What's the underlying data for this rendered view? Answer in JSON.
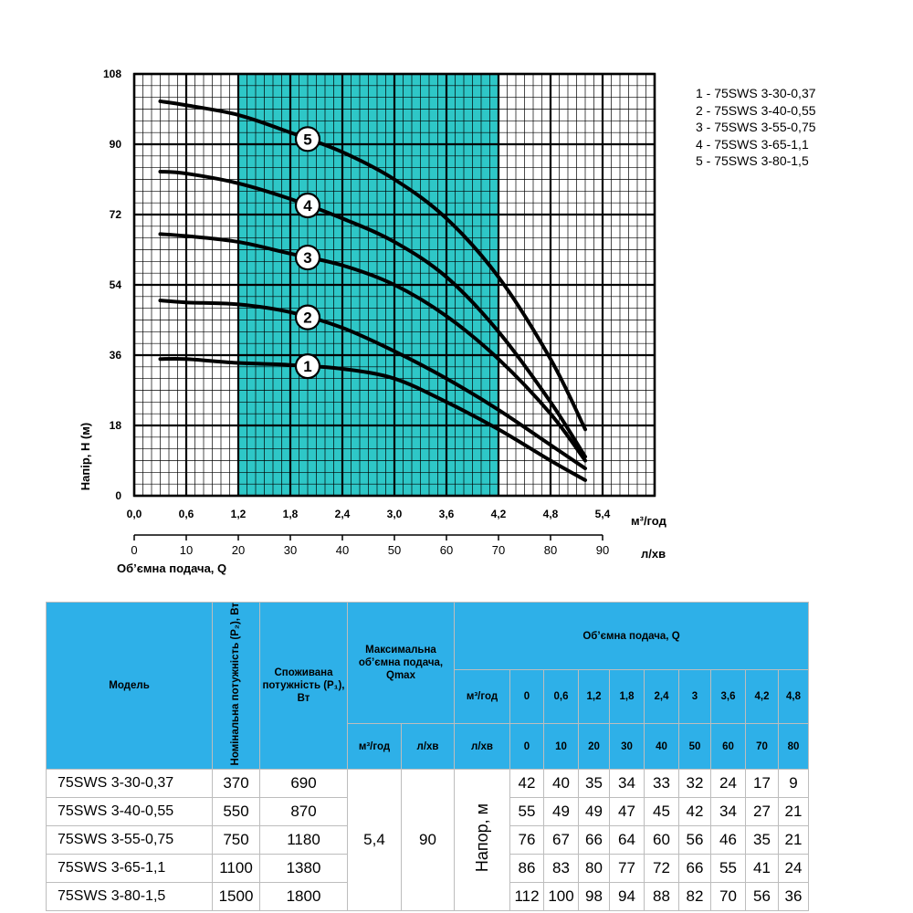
{
  "chart_data": {
    "type": "line",
    "xlabel_primary": "м³/год",
    "xlabel_secondary": "л/хв",
    "xaxis_caption": "Об’ємна подача, Q",
    "ylabel": "Напір, Н (м)",
    "xlim": [
      0,
      6
    ],
    "ylim": [
      0,
      108
    ],
    "x_ticks": [
      "0,0",
      "0,6",
      "1,2",
      "1,8",
      "2,4",
      "3,0",
      "3,6",
      "4,2",
      "4,8",
      "5,4"
    ],
    "x_ticks_secondary": [
      "0",
      "10",
      "20",
      "30",
      "40",
      "50",
      "60",
      "70",
      "80",
      "90"
    ],
    "y_ticks": [
      "0",
      "18",
      "36",
      "54",
      "72",
      "90",
      "108"
    ],
    "grid": true,
    "shaded_range": [
      1.2,
      4.2
    ],
    "shade_color": "#2ec7c7",
    "legend_position": "top-right",
    "legend": [
      "1 - 75SWS 3-30-0,37",
      "2 - 75SWS 3-40-0,55",
      "3 - 75SWS 3-55-0,75",
      "4 - 75SWS 3-65-1,1",
      "5 - 75SWS 3-80-1,5"
    ],
    "series": [
      {
        "name": "1",
        "label_at": 2.0,
        "x": [
          0.3,
          0.6,
          1.2,
          1.8,
          2.4,
          3.0,
          3.6,
          4.2,
          4.8,
          5.2
        ],
        "y": [
          35,
          35,
          34,
          33.5,
          32.5,
          30,
          24,
          17,
          9,
          4
        ]
      },
      {
        "name": "2",
        "label_at": 2.0,
        "x": [
          0.3,
          0.6,
          1.2,
          1.8,
          2.4,
          3.0,
          3.6,
          4.2,
          4.8,
          5.2
        ],
        "y": [
          50,
          49.5,
          49,
          47,
          43,
          37,
          30,
          22,
          13,
          7
        ]
      },
      {
        "name": "3",
        "label_at": 2.0,
        "x": [
          0.3,
          0.6,
          1.2,
          1.8,
          2.4,
          3.0,
          3.6,
          4.2,
          4.8,
          5.2
        ],
        "y": [
          67,
          66.5,
          65,
          62,
          59,
          54,
          46,
          35,
          21,
          9
        ]
      },
      {
        "name": "4",
        "label_at": 2.0,
        "x": [
          0.3,
          0.6,
          1.2,
          1.8,
          2.4,
          3.0,
          3.6,
          4.2,
          4.8,
          5.2
        ],
        "y": [
          83,
          82.5,
          80,
          76,
          71,
          65,
          56,
          42,
          24,
          10
        ]
      },
      {
        "name": "5",
        "label_at": 2.0,
        "x": [
          0.3,
          0.6,
          1.2,
          1.8,
          2.4,
          3.0,
          3.6,
          4.2,
          4.8,
          5.2
        ],
        "y": [
          101,
          100,
          97.5,
          93,
          88,
          81,
          71,
          56,
          35,
          17
        ]
      }
    ]
  },
  "table": {
    "model_header": "Модель",
    "power_header": "Номінальна потужність (P₂), Вт",
    "consumed_header": "Споживана потужність (P₁), Вт",
    "qmax_header": "Максимальна об’ємна подача, Qmax",
    "qmax_unit1": "м³/год",
    "qmax_unit2": "л/хв",
    "flow_header": "Об’ємна подача, Q",
    "flow_unit1": "м³/год",
    "flow_unit2": "л/хв",
    "flow_m3": [
      "0",
      "0,6",
      "1,2",
      "1,8",
      "2,4",
      "3",
      "3,6",
      "4,2",
      "4,8"
    ],
    "flow_lmin": [
      "0",
      "10",
      "20",
      "30",
      "40",
      "50",
      "60",
      "70",
      "80"
    ],
    "qmax_m3": "5,4",
    "qmax_lmin": "90",
    "head_label": "Напор, м",
    "rows": [
      {
        "model": "75SWS 3-30-0,37",
        "p2": "370",
        "p1": "690",
        "heads": [
          "42",
          "40",
          "35",
          "34",
          "33",
          "32",
          "24",
          "17",
          "9"
        ]
      },
      {
        "model": "75SWS 3-40-0,55",
        "p2": "550",
        "p1": "870",
        "heads": [
          "55",
          "49",
          "49",
          "47",
          "45",
          "42",
          "34",
          "27",
          "21"
        ]
      },
      {
        "model": "75SWS 3-55-0,75",
        "p2": "750",
        "p1": "1180",
        "heads": [
          "76",
          "67",
          "66",
          "64",
          "60",
          "56",
          "46",
          "35",
          "21"
        ]
      },
      {
        "model": "75SWS 3-65-1,1",
        "p2": "1100",
        "p1": "1380",
        "heads": [
          "86",
          "83",
          "80",
          "77",
          "72",
          "66",
          "55",
          "41",
          "24"
        ]
      },
      {
        "model": "75SWS 3-80-1,5",
        "p2": "1500",
        "p1": "1800",
        "heads": [
          "112",
          "100",
          "98",
          "94",
          "88",
          "82",
          "70",
          "56",
          "36"
        ]
      }
    ]
  }
}
